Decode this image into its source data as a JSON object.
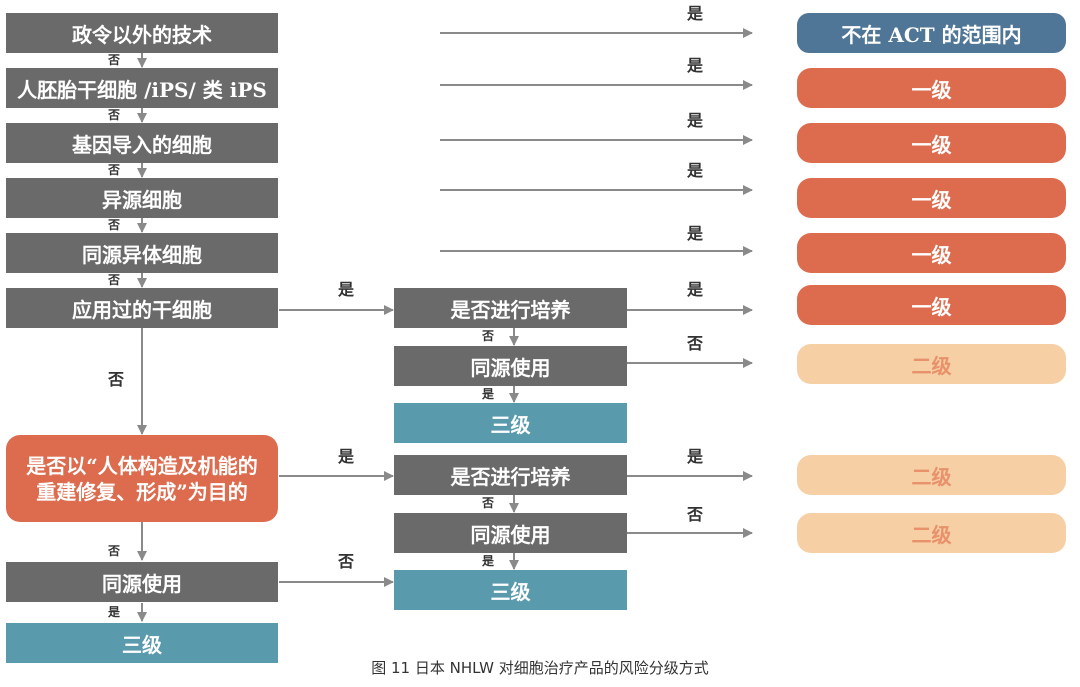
{
  "left_boxes": [
    "政令以外的技术",
    "人胚胎干细胞 /iPS/ 类 iPS",
    "基因导入的细胞",
    "异源细胞",
    "同源异体细胞",
    "应用过的干细胞"
  ],
  "purpose_box": {
    "line1": "是否以“人体构造及机能的",
    "line2": "重建修复、形成”为目的"
  },
  "bottom_left": {
    "use": "同源使用",
    "result": "三级"
  },
  "mid_top": {
    "culture": "是否进行培养",
    "use": "同源使用",
    "result": "三级"
  },
  "mid_bottom": {
    "culture": "是否进行培养",
    "use": "同源使用",
    "result": "三级"
  },
  "right_boxes": [
    "不在 ACT 的范围内",
    "一级",
    "一级",
    "一级",
    "一级",
    "一级",
    "二级",
    "二级",
    "二级"
  ],
  "labels": {
    "yes": "是",
    "no": "否"
  },
  "caption": "图 11  日本 NHLW 对细胞治疗产品的风险分级方式",
  "colors": {
    "gray": "#6a6a6a",
    "teal": "#5a9aad",
    "red": "#dd6c4f",
    "blue": "#4f7696",
    "peach": "#f6cfa5",
    "arrow": "#8a8a8a"
  }
}
